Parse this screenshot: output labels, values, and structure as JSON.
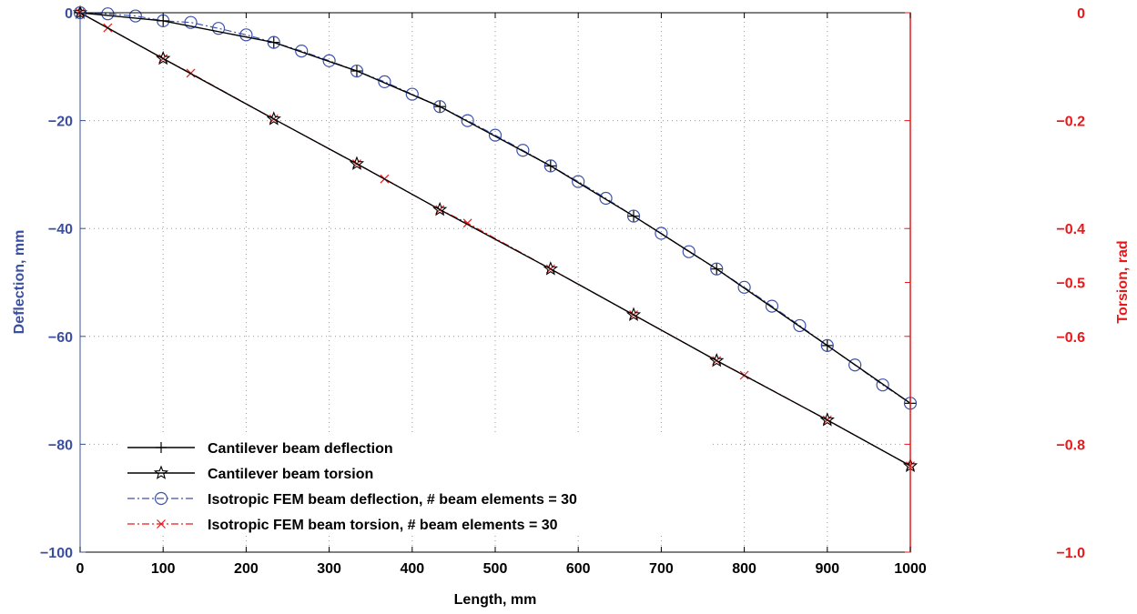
{
  "chart_data": {
    "type": "line",
    "xlabel": "Length, mm",
    "ylabel_left": "Deflection, mm",
    "ylabel_right": "Torsion, rad",
    "xlim": [
      0,
      1000
    ],
    "ylim_left": [
      -100,
      0
    ],
    "ylim_right": [
      -1.0,
      0
    ],
    "grid": true,
    "legend_position": "bottom-left",
    "colors": {
      "left_axis": "#3b4fa0",
      "right_axis": "#e8191a",
      "analytical": "#000000",
      "fem_deflection": "#3d52a8",
      "fem_torsion": "#e8191a"
    },
    "x_ticks": [
      "0",
      "100",
      "200",
      "300",
      "400",
      "500",
      "600",
      "700",
      "800",
      "900",
      "1000"
    ],
    "y_left_ticks": [
      "0",
      "−20",
      "−40",
      "−60",
      "−80",
      "−100"
    ],
    "y_right_ticks": [
      "0",
      "−0.2",
      "−0.4",
      "−0.5",
      "−0.6",
      "−0.8",
      "−1.0"
    ],
    "series": [
      {
        "name": "Cantilever beam deflection",
        "axis": "left",
        "marker": "plus",
        "line": "solid",
        "x": [
          0,
          100,
          233.3,
          333.3,
          433.3,
          566.7,
          666.7,
          766.7,
          900,
          1000
        ],
        "y": [
          0,
          -1.5,
          -5.5,
          -10.8,
          -17.4,
          -28.4,
          -37.7,
          -47.5,
          -61.7,
          -72.4
        ]
      },
      {
        "name": "Cantilever beam torsion",
        "axis": "right",
        "marker": "star",
        "line": "solid",
        "x": [
          0,
          100,
          233.3,
          333.3,
          433.3,
          566.7,
          666.7,
          766.7,
          900,
          1000
        ],
        "y": [
          0,
          -0.085,
          -0.197,
          -0.28,
          -0.365,
          -0.475,
          -0.56,
          -0.645,
          -0.755,
          -0.84
        ]
      },
      {
        "name": "Isotropic FEM beam deflection, # beam elements = 30",
        "axis": "left",
        "marker": "circle",
        "line": "dashdot",
        "x": [
          0,
          33.3,
          66.7,
          100,
          133.3,
          166.7,
          200,
          233.3,
          266.7,
          300,
          333.3,
          366.7,
          400,
          433.3,
          466.7,
          500,
          533.3,
          566.7,
          600,
          633.3,
          666.7,
          700,
          733.3,
          766.7,
          800,
          833.3,
          866.7,
          900,
          933.3,
          966.7,
          1000
        ],
        "y": [
          0,
          -0.2,
          -0.6,
          -1.5,
          -1.8,
          -2.9,
          -4.1,
          -5.5,
          -7.1,
          -8.9,
          -10.8,
          -12.8,
          -15.1,
          -17.4,
          -20.0,
          -22.7,
          -25.5,
          -28.4,
          -31.3,
          -34.4,
          -37.7,
          -40.9,
          -44.3,
          -47.5,
          -50.9,
          -54.4,
          -58.0,
          -61.7,
          -65.3,
          -69.0,
          -72.4
        ]
      },
      {
        "name": "Isotropic FEM beam torsion, # beam elements = 30",
        "axis": "right",
        "marker": "x",
        "line": "dashdot",
        "x": [
          0,
          33.3,
          100,
          133.3,
          233.3,
          333.3,
          366.7,
          433.3,
          466.7,
          566.7,
          666.7,
          766.7,
          800,
          900,
          1000
        ],
        "y": [
          0,
          -0.028,
          -0.085,
          -0.112,
          -0.197,
          -0.28,
          -0.308,
          -0.365,
          -0.39,
          -0.475,
          -0.56,
          -0.645,
          -0.672,
          -0.755,
          -0.84
        ]
      }
    ]
  }
}
